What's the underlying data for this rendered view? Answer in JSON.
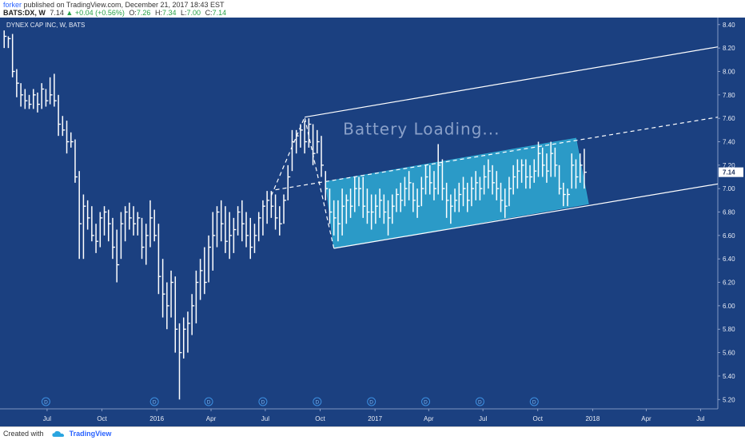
{
  "header": {
    "author": "forker",
    "published_text": "published on TradingView.com, December 21, 2017 18:43 EST",
    "symbol": "BATS:DX, W",
    "last": "7.14",
    "change_arrow": "▲",
    "change": "+0.04 (+0.56%)",
    "o_label": "O:",
    "o": "7.26",
    "h_label": "H:",
    "h": "7.34",
    "l_label": "L:",
    "l": "7.00",
    "c_label": "C:",
    "c": "7.14"
  },
  "pane": {
    "title": "DYNEX CAP INC, W, BATS"
  },
  "footer": {
    "created_with": "Created with",
    "brand": "TradingView"
  },
  "colors": {
    "chart_bg": "#1b4080",
    "bar": "#ffffff",
    "channel_fill": "#2eaad4",
    "axis_text": "#e8ecf5",
    "text_overlay": "#8aa0c8"
  },
  "chart_data": {
    "type": "ohlc",
    "title": "DYNEX CAP INC, W, BATS",
    "y_axis": {
      "min": 5.12,
      "max": 8.46,
      "ticks": [
        "8.40",
        "8.20",
        "8.00",
        "7.80",
        "7.60",
        "7.40",
        "7.20",
        "7.00",
        "6.80",
        "6.60",
        "6.40",
        "6.20",
        "6.00",
        "5.80",
        "5.60",
        "5.40",
        "5.20"
      ],
      "last_price_label": "7.14",
      "position": "right"
    },
    "x_axis": {
      "start_date": "2015-04-13",
      "end_date": "2018-07-30",
      "ticks": [
        {
          "label": "Jul",
          "date": "2015-07-01"
        },
        {
          "label": "Oct",
          "date": "2015-10-01"
        },
        {
          "label": "2016",
          "date": "2016-01-01"
        },
        {
          "label": "Apr",
          "date": "2016-04-01"
        },
        {
          "label": "Jul",
          "date": "2016-07-01"
        },
        {
          "label": "Oct",
          "date": "2016-10-01"
        },
        {
          "label": "2017",
          "date": "2017-01-01"
        },
        {
          "label": "Apr",
          "date": "2017-04-01"
        },
        {
          "label": "Jul",
          "date": "2017-07-01"
        },
        {
          "label": "Oct",
          "date": "2017-10-01"
        },
        {
          "label": "2018",
          "date": "2018-01-01"
        },
        {
          "label": "Apr",
          "date": "2018-04-01"
        },
        {
          "label": "Jul",
          "date": "2018-07-01"
        }
      ]
    },
    "bars": [
      {
        "date": "2015-04-20",
        "high": 8.35,
        "low": 8.2,
        "close": 8.3
      },
      {
        "date": "2015-04-27",
        "high": 8.3,
        "low": 8.2,
        "close": 8.28
      },
      {
        "date": "2015-05-04",
        "high": 8.32,
        "low": 7.95,
        "close": 8.0
      },
      {
        "date": "2015-05-11",
        "high": 8.02,
        "low": 7.78,
        "close": 7.9
      },
      {
        "date": "2015-05-18",
        "high": 7.9,
        "low": 7.7,
        "close": 7.8
      },
      {
        "date": "2015-05-25",
        "high": 7.85,
        "low": 7.68,
        "close": 7.75
      },
      {
        "date": "2015-06-01",
        "high": 7.8,
        "low": 7.68,
        "close": 7.72
      },
      {
        "date": "2015-06-08",
        "high": 7.85,
        "low": 7.68,
        "close": 7.8
      },
      {
        "date": "2015-06-15",
        "high": 7.82,
        "low": 7.65,
        "close": 7.72
      },
      {
        "date": "2015-06-22",
        "high": 7.9,
        "low": 7.68,
        "close": 7.85
      },
      {
        "date": "2015-06-29",
        "high": 7.85,
        "low": 7.7,
        "close": 7.75
      },
      {
        "date": "2015-07-06",
        "high": 7.95,
        "low": 7.72,
        "close": 7.8
      },
      {
        "date": "2015-07-13",
        "high": 7.98,
        "low": 7.7,
        "close": 7.75
      },
      {
        "date": "2015-07-20",
        "high": 7.8,
        "low": 7.45,
        "close": 7.55
      },
      {
        "date": "2015-07-27",
        "high": 7.62,
        "low": 7.45,
        "close": 7.5
      },
      {
        "date": "2015-08-03",
        "high": 7.58,
        "low": 7.3,
        "close": 7.4
      },
      {
        "date": "2015-08-10",
        "high": 7.48,
        "low": 7.35,
        "close": 7.4
      },
      {
        "date": "2015-08-17",
        "high": 7.42,
        "low": 7.05,
        "close": 7.1
      },
      {
        "date": "2015-08-24",
        "high": 7.15,
        "low": 6.4,
        "close": 6.7
      },
      {
        "date": "2015-08-31",
        "high": 6.95,
        "low": 6.4,
        "close": 6.85
      },
      {
        "date": "2015-09-07",
        "high": 6.9,
        "low": 6.65,
        "close": 6.75
      },
      {
        "date": "2015-09-14",
        "high": 6.85,
        "low": 6.55,
        "close": 6.6
      },
      {
        "date": "2015-09-21",
        "high": 6.7,
        "low": 6.45,
        "close": 6.55
      },
      {
        "date": "2015-09-28",
        "high": 6.8,
        "low": 6.5,
        "close": 6.75
      },
      {
        "date": "2015-10-05",
        "high": 6.85,
        "low": 6.6,
        "close": 6.8
      },
      {
        "date": "2015-10-12",
        "high": 6.82,
        "low": 6.55,
        "close": 6.7
      },
      {
        "date": "2015-10-19",
        "high": 6.75,
        "low": 6.4,
        "close": 6.5
      },
      {
        "date": "2015-10-26",
        "high": 6.65,
        "low": 6.2,
        "close": 6.35
      },
      {
        "date": "2015-11-02",
        "high": 6.8,
        "low": 6.4,
        "close": 6.7
      },
      {
        "date": "2015-11-09",
        "high": 6.85,
        "low": 6.55,
        "close": 6.8
      },
      {
        "date": "2015-11-16",
        "high": 6.88,
        "low": 6.65,
        "close": 6.75
      },
      {
        "date": "2015-11-23",
        "high": 6.85,
        "low": 6.6,
        "close": 6.7
      },
      {
        "date": "2015-11-30",
        "high": 6.8,
        "low": 6.6,
        "close": 6.75
      },
      {
        "date": "2015-12-07",
        "high": 6.75,
        "low": 6.4,
        "close": 6.5
      },
      {
        "date": "2015-12-14",
        "high": 6.7,
        "low": 6.35,
        "close": 6.6
      },
      {
        "date": "2015-12-21",
        "high": 6.9,
        "low": 6.5,
        "close": 6.75
      },
      {
        "date": "2015-12-28",
        "high": 6.82,
        "low": 6.55,
        "close": 6.6
      },
      {
        "date": "2016-01-04",
        "high": 6.7,
        "low": 6.1,
        "close": 6.25
      },
      {
        "date": "2016-01-11",
        "high": 6.4,
        "low": 5.9,
        "close": 6.1
      },
      {
        "date": "2016-01-18",
        "high": 6.2,
        "low": 5.8,
        "close": 6.0
      },
      {
        "date": "2016-01-25",
        "high": 6.3,
        "low": 5.9,
        "close": 6.2
      },
      {
        "date": "2016-02-01",
        "high": 6.25,
        "low": 5.6,
        "close": 5.8
      },
      {
        "date": "2016-02-08",
        "high": 5.85,
        "low": 5.2,
        "close": 5.6
      },
      {
        "date": "2016-02-15",
        "high": 5.9,
        "low": 5.55,
        "close": 5.8
      },
      {
        "date": "2016-02-22",
        "high": 5.95,
        "low": 5.6,
        "close": 5.85
      },
      {
        "date": "2016-02-29",
        "high": 6.1,
        "low": 5.75,
        "close": 6.0
      },
      {
        "date": "2016-03-07",
        "high": 6.3,
        "low": 5.85,
        "close": 6.2
      },
      {
        "date": "2016-03-14",
        "high": 6.4,
        "low": 6.05,
        "close": 6.3
      },
      {
        "date": "2016-03-21",
        "high": 6.5,
        "low": 6.1,
        "close": 6.2
      },
      {
        "date": "2016-03-28",
        "high": 6.6,
        "low": 6.2,
        "close": 6.5
      },
      {
        "date": "2016-04-04",
        "high": 6.8,
        "low": 6.3,
        "close": 6.6
      },
      {
        "date": "2016-04-11",
        "high": 6.85,
        "low": 6.5,
        "close": 6.8
      },
      {
        "date": "2016-04-18",
        "high": 6.9,
        "low": 6.55,
        "close": 6.7
      },
      {
        "date": "2016-04-25",
        "high": 6.85,
        "low": 6.45,
        "close": 6.55
      },
      {
        "date": "2016-05-02",
        "high": 6.8,
        "low": 6.4,
        "close": 6.6
      },
      {
        "date": "2016-05-09",
        "high": 6.75,
        "low": 6.45,
        "close": 6.65
      },
      {
        "date": "2016-05-16",
        "high": 6.85,
        "low": 6.6,
        "close": 6.8
      },
      {
        "date": "2016-05-23",
        "high": 6.9,
        "low": 6.55,
        "close": 6.7
      },
      {
        "date": "2016-05-30",
        "high": 6.8,
        "low": 6.5,
        "close": 6.6
      },
      {
        "date": "2016-06-06",
        "high": 6.75,
        "low": 6.4,
        "close": 6.5
      },
      {
        "date": "2016-06-13",
        "high": 6.7,
        "low": 6.45,
        "close": 6.6
      },
      {
        "date": "2016-06-20",
        "high": 6.8,
        "low": 6.55,
        "close": 6.75
      },
      {
        "date": "2016-06-27",
        "high": 6.9,
        "low": 6.6,
        "close": 6.85
      },
      {
        "date": "2016-07-04",
        "high": 6.98,
        "low": 6.7,
        "close": 6.9
      },
      {
        "date": "2016-07-11",
        "high": 6.98,
        "low": 6.75,
        "close": 6.85
      },
      {
        "date": "2016-07-18",
        "high": 6.95,
        "low": 6.65,
        "close": 6.75
      },
      {
        "date": "2016-07-25",
        "high": 6.85,
        "low": 6.6,
        "close": 6.7
      },
      {
        "date": "2016-08-01",
        "high": 6.95,
        "low": 6.7,
        "close": 6.9
      },
      {
        "date": "2016-08-08",
        "high": 7.2,
        "low": 6.9,
        "close": 7.1
      },
      {
        "date": "2016-08-15",
        "high": 7.5,
        "low": 7.15,
        "close": 7.4
      },
      {
        "date": "2016-08-22",
        "high": 7.5,
        "low": 7.3,
        "close": 7.45
      },
      {
        "date": "2016-08-29",
        "high": 7.55,
        "low": 7.35,
        "close": 7.5
      },
      {
        "date": "2016-09-05",
        "high": 7.58,
        "low": 7.3,
        "close": 7.4
      },
      {
        "date": "2016-09-12",
        "high": 7.6,
        "low": 7.35,
        "close": 7.55
      },
      {
        "date": "2016-09-19",
        "high": 7.55,
        "low": 7.2,
        "close": 7.3
      },
      {
        "date": "2016-09-26",
        "high": 7.5,
        "low": 7.3,
        "close": 7.4
      },
      {
        "date": "2016-10-03",
        "high": 7.45,
        "low": 7.1,
        "close": 7.2
      },
      {
        "date": "2016-10-10",
        "high": 7.15,
        "low": 6.9,
        "close": 7.0
      },
      {
        "date": "2016-10-17",
        "high": 7.0,
        "low": 6.7,
        "close": 6.8
      },
      {
        "date": "2016-10-24",
        "high": 6.9,
        "low": 6.6,
        "close": 6.75
      },
      {
        "date": "2016-10-31",
        "high": 6.9,
        "low": 6.55,
        "close": 6.7
      },
      {
        "date": "2016-11-07",
        "high": 7.0,
        "low": 6.6,
        "close": 6.85
      },
      {
        "date": "2016-11-14",
        "high": 6.95,
        "low": 6.7,
        "close": 6.9
      },
      {
        "date": "2016-11-21",
        "high": 7.0,
        "low": 6.75,
        "close": 6.85
      },
      {
        "date": "2016-11-28",
        "high": 7.1,
        "low": 6.8,
        "close": 7.0
      },
      {
        "date": "2016-12-05",
        "high": 7.1,
        "low": 6.85,
        "close": 7.0
      },
      {
        "date": "2016-12-12",
        "high": 7.1,
        "low": 6.75,
        "close": 6.85
      },
      {
        "date": "2016-12-19",
        "high": 7.0,
        "low": 6.7,
        "close": 6.8
      },
      {
        "date": "2016-12-26",
        "high": 6.95,
        "low": 6.65,
        "close": 6.8
      },
      {
        "date": "2017-01-02",
        "high": 6.95,
        "low": 6.7,
        "close": 6.85
      },
      {
        "date": "2017-01-09",
        "high": 7.0,
        "low": 6.75,
        "close": 6.9
      },
      {
        "date": "2017-01-16",
        "high": 6.95,
        "low": 6.7,
        "close": 6.8
      },
      {
        "date": "2017-01-23",
        "high": 6.9,
        "low": 6.6,
        "close": 6.75
      },
      {
        "date": "2017-01-30",
        "high": 6.95,
        "low": 6.7,
        "close": 6.85
      },
      {
        "date": "2017-02-06",
        "high": 7.0,
        "low": 6.8,
        "close": 6.95
      },
      {
        "date": "2017-02-13",
        "high": 7.05,
        "low": 6.8,
        "close": 6.9
      },
      {
        "date": "2017-02-20",
        "high": 7.1,
        "low": 6.85,
        "close": 7.0
      },
      {
        "date": "2017-02-27",
        "high": 7.15,
        "low": 6.9,
        "close": 7.05
      },
      {
        "date": "2017-03-06",
        "high": 7.05,
        "low": 6.8,
        "close": 6.9
      },
      {
        "date": "2017-03-13",
        "high": 7.0,
        "low": 6.75,
        "close": 6.85
      },
      {
        "date": "2017-03-20",
        "high": 7.1,
        "low": 6.85,
        "close": 7.0
      },
      {
        "date": "2017-03-27",
        "high": 7.2,
        "low": 6.95,
        "close": 7.1
      },
      {
        "date": "2017-04-03",
        "high": 7.2,
        "low": 6.95,
        "close": 7.05
      },
      {
        "date": "2017-04-10",
        "high": 7.15,
        "low": 6.9,
        "close": 7.0
      },
      {
        "date": "2017-04-17",
        "high": 7.38,
        "low": 6.95,
        "close": 7.2
      },
      {
        "date": "2017-04-24",
        "high": 7.25,
        "low": 6.9,
        "close": 7.0
      },
      {
        "date": "2017-05-01",
        "high": 7.05,
        "low": 6.75,
        "close": 6.9
      },
      {
        "date": "2017-05-08",
        "high": 6.95,
        "low": 6.7,
        "close": 6.85
      },
      {
        "date": "2017-05-15",
        "high": 7.0,
        "low": 6.8,
        "close": 6.9
      },
      {
        "date": "2017-05-22",
        "high": 7.05,
        "low": 6.8,
        "close": 6.95
      },
      {
        "date": "2017-05-29",
        "high": 7.1,
        "low": 6.85,
        "close": 7.0
      },
      {
        "date": "2017-06-05",
        "high": 7.05,
        "low": 6.8,
        "close": 6.9
      },
      {
        "date": "2017-06-12",
        "high": 7.1,
        "low": 6.85,
        "close": 7.0
      },
      {
        "date": "2017-06-19",
        "high": 7.15,
        "low": 6.9,
        "close": 7.05
      },
      {
        "date": "2017-06-26",
        "high": 7.1,
        "low": 6.9,
        "close": 7.0
      },
      {
        "date": "2017-07-03",
        "high": 7.2,
        "low": 6.95,
        "close": 7.1
      },
      {
        "date": "2017-07-10",
        "high": 7.25,
        "low": 7.0,
        "close": 7.15
      },
      {
        "date": "2017-07-17",
        "high": 7.2,
        "low": 6.95,
        "close": 7.05
      },
      {
        "date": "2017-07-24",
        "high": 7.15,
        "low": 6.9,
        "close": 7.0
      },
      {
        "date": "2017-07-31",
        "high": 7.05,
        "low": 6.8,
        "close": 6.9
      },
      {
        "date": "2017-08-07",
        "high": 7.0,
        "low": 6.75,
        "close": 6.85
      },
      {
        "date": "2017-08-14",
        "high": 7.1,
        "low": 6.85,
        "close": 7.0
      },
      {
        "date": "2017-08-21",
        "high": 7.2,
        "low": 6.95,
        "close": 7.1
      },
      {
        "date": "2017-08-28",
        "high": 7.25,
        "low": 7.0,
        "close": 7.15
      },
      {
        "date": "2017-09-04",
        "high": 7.25,
        "low": 7.05,
        "close": 7.2
      },
      {
        "date": "2017-09-11",
        "high": 7.25,
        "low": 7.0,
        "close": 7.1
      },
      {
        "date": "2017-09-18",
        "high": 7.2,
        "low": 7.0,
        "close": 7.1
      },
      {
        "date": "2017-09-25",
        "high": 7.25,
        "low": 7.05,
        "close": 7.15
      },
      {
        "date": "2017-10-02",
        "high": 7.4,
        "low": 7.1,
        "close": 7.3
      },
      {
        "date": "2017-10-09",
        "high": 7.35,
        "low": 7.1,
        "close": 7.2
      },
      {
        "date": "2017-10-16",
        "high": 7.3,
        "low": 7.05,
        "close": 7.15
      },
      {
        "date": "2017-10-23",
        "high": 7.4,
        "low": 7.1,
        "close": 7.3
      },
      {
        "date": "2017-10-30",
        "high": 7.35,
        "low": 7.1,
        "close": 7.2
      },
      {
        "date": "2017-11-06",
        "high": 7.2,
        "low": 6.95,
        "close": 7.0
      },
      {
        "date": "2017-11-13",
        "high": 7.05,
        "low": 6.85,
        "close": 6.95
      },
      {
        "date": "2017-11-20",
        "high": 7.0,
        "low": 6.85,
        "close": 6.95
      },
      {
        "date": "2017-11-27",
        "high": 7.3,
        "low": 7.0,
        "close": 7.2
      },
      {
        "date": "2017-12-04",
        "high": 7.25,
        "low": 7.0,
        "close": 7.1
      },
      {
        "date": "2017-12-11",
        "high": 7.3,
        "low": 7.05,
        "close": 7.2
      },
      {
        "date": "2017-12-18",
        "high": 7.34,
        "low": 7.0,
        "close": 7.14
      }
    ],
    "drawings": {
      "channel_upper": {
        "from": {
          "date": "2016-09-05",
          "price": 7.61
        },
        "to": {
          "date": "2018-07-30",
          "price": 8.21
        }
      },
      "channel_mid": {
        "from": {
          "date": "2016-07-18",
          "price": 6.99
        },
        "to": {
          "date": "2018-07-30",
          "price": 7.61
        }
      },
      "channel_lower": {
        "from": {
          "date": "2016-10-24",
          "price": 6.49
        },
        "to": {
          "date": "2018-07-30",
          "price": 7.04
        }
      },
      "zigzag": [
        {
          "date": "2016-07-11",
          "price": 6.94
        },
        {
          "date": "2016-09-05",
          "price": 7.61
        },
        {
          "date": "2016-10-24",
          "price": 6.49
        }
      ],
      "rectangle": [
        {
          "date": "2016-10-10",
          "price": 7.06
        },
        {
          "date": "2017-12-04",
          "price": 7.43
        },
        {
          "date": "2017-12-25",
          "price": 6.87
        },
        {
          "date": "2016-10-24",
          "price": 6.49
        }
      ],
      "annotation": {
        "text": "Battery Loading...",
        "date": "2017-03-20",
        "price": 7.46
      },
      "dividend_markers": [
        {
          "date": "2015-06-29",
          "label": "D"
        },
        {
          "date": "2015-12-28",
          "label": "D"
        },
        {
          "date": "2016-03-28",
          "label": "D"
        },
        {
          "date": "2016-06-27",
          "label": "D"
        },
        {
          "date": "2016-09-26",
          "label": "D"
        },
        {
          "date": "2016-12-26",
          "label": "D"
        },
        {
          "date": "2017-03-27",
          "label": "D"
        },
        {
          "date": "2017-06-26",
          "label": "D"
        },
        {
          "date": "2017-09-25",
          "label": "D"
        }
      ]
    }
  }
}
